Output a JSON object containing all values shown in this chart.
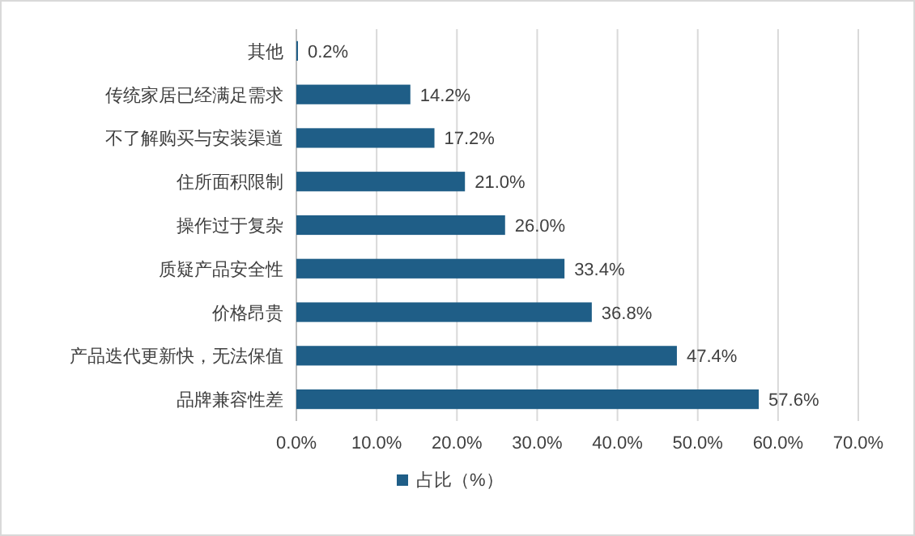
{
  "chart_data": {
    "type": "bar",
    "orientation": "horizontal",
    "categories": [
      "其他",
      "传统家居已经满足需求",
      "不了解购买与安装渠道",
      "住所面积限制",
      "操作过于复杂",
      "质疑产品安全性",
      "价格昂贵",
      "产品迭代更新快，无法保值",
      "品牌兼容性差"
    ],
    "series": [
      {
        "name": "占比（%）",
        "color": "#1f5e87",
        "values": [
          0.2,
          14.2,
          17.2,
          21.0,
          26.0,
          33.4,
          36.8,
          47.4,
          57.6
        ],
        "value_labels": [
          "0.2%",
          "14.2%",
          "17.2%",
          "21.0%",
          "26.0%",
          "33.4%",
          "36.8%",
          "47.4%",
          "57.6%"
        ]
      }
    ],
    "xlim": [
      0,
      70
    ],
    "xticks": [
      {
        "value": 0,
        "label": "0.0%"
      },
      {
        "value": 10,
        "label": "10.0%"
      },
      {
        "value": 20,
        "label": "20.0%"
      },
      {
        "value": 30,
        "label": "30.0%"
      },
      {
        "value": 40,
        "label": "40.0%"
      },
      {
        "value": 50,
        "label": "50.0%"
      },
      {
        "value": 60,
        "label": "60.0%"
      },
      {
        "value": 70,
        "label": "70.0%"
      }
    ],
    "grid": "x",
    "legend": "bottom"
  }
}
